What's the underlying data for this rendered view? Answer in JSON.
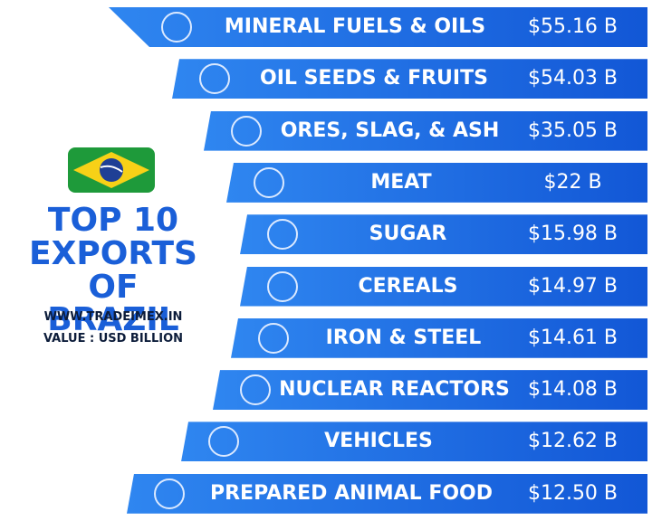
{
  "title": [
    "TOP 10",
    "EXPORTS",
    "OF BRAZIL"
  ],
  "website": "WWW.TRADEIMEX.IN",
  "unit": "VALUE : USD BILLION",
  "items": [
    {
      "name": "MINERAL FUELS & OILS",
      "value": "$55.16 B"
    },
    {
      "name": "OIL SEEDS & FRUITS",
      "value": "$54.03 B"
    },
    {
      "name": "ORES, SLAG, & ASH",
      "value": "$35.05 B"
    },
    {
      "name": "MEAT",
      "value": "$22 B"
    },
    {
      "name": "SUGAR",
      "value": "$15.98 B"
    },
    {
      "name": "CEREALS",
      "value": "$14.97 B"
    },
    {
      "name": "IRON & STEEL",
      "value": "$14.61 B"
    },
    {
      "name": "NUCLEAR REACTORS",
      "value": "$14.08 B"
    },
    {
      "name": "VEHICLES",
      "value": "$12.62 B"
    },
    {
      "name": "PREPARED ANIMAL FOOD",
      "value": "$12.50 B"
    }
  ]
}
